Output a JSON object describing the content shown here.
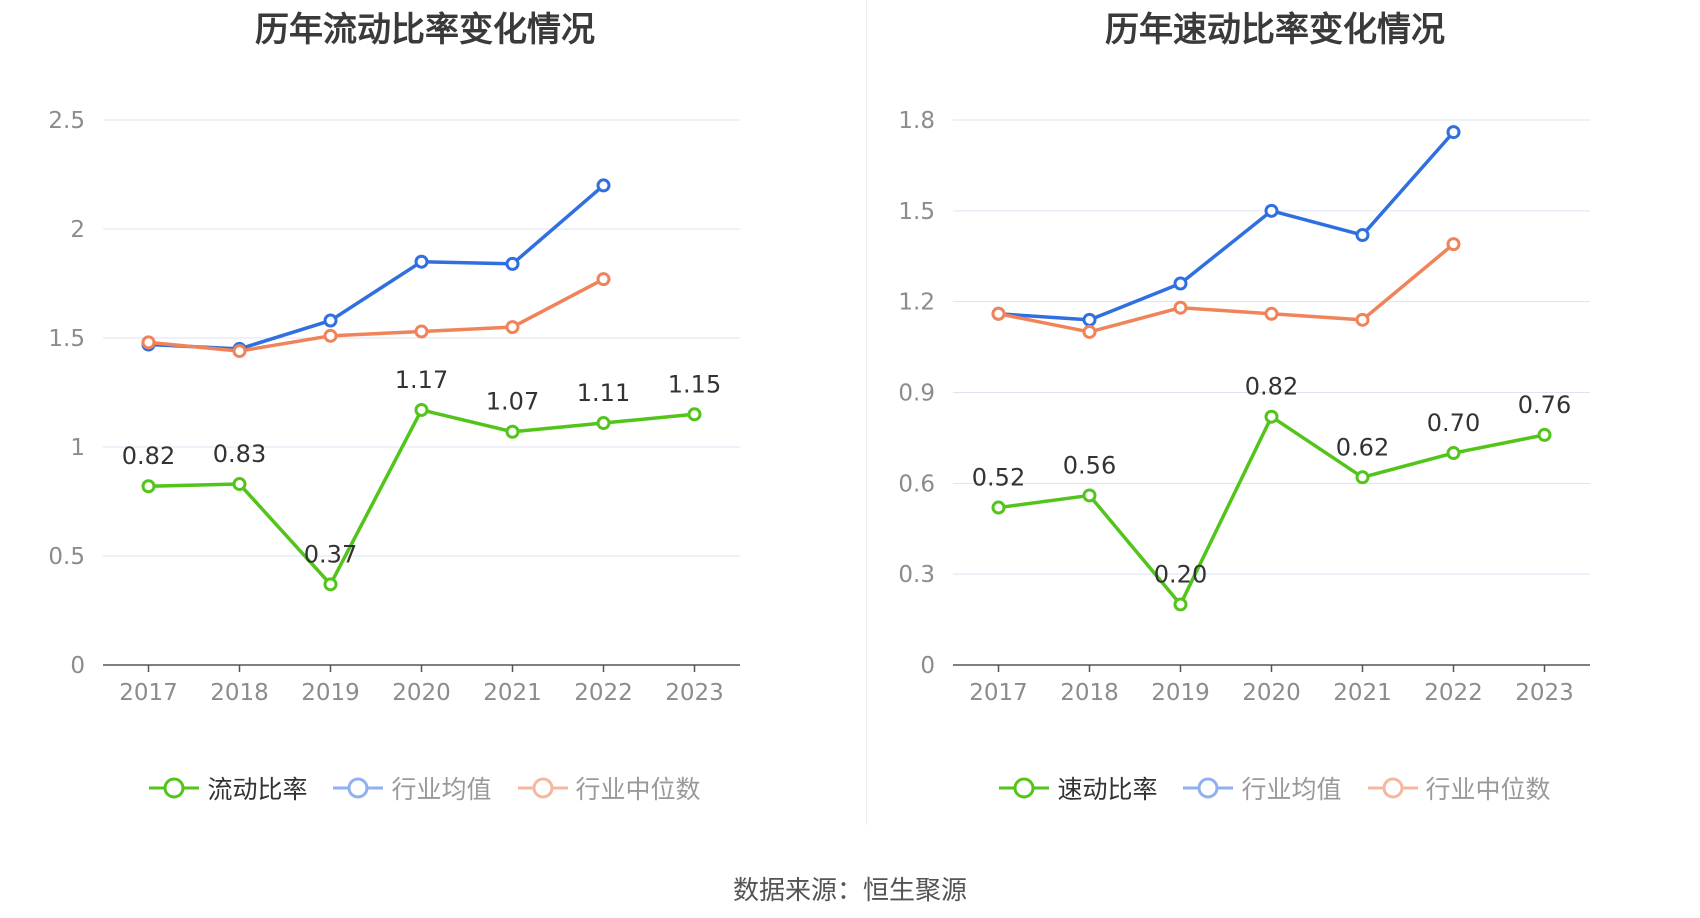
{
  "colors": {
    "primary": "#52c41a",
    "average": "#2f6fdf",
    "median": "#f0835a"
  },
  "source_label": "数据来源：恒生聚源",
  "chart_data": [
    {
      "type": "line",
      "title": "历年流动比率变化情况",
      "categories": [
        "2017",
        "2018",
        "2019",
        "2020",
        "2021",
        "2022",
        "2023"
      ],
      "ylim": [
        0,
        2.5
      ],
      "yticks": [
        "0",
        "0.5",
        "1",
        "1.5",
        "2",
        "2.5"
      ],
      "grid": true,
      "legend_position": "bottom",
      "series": [
        {
          "name": "流动比率",
          "values": [
            0.82,
            0.83,
            0.37,
            1.17,
            1.07,
            1.11,
            1.15
          ],
          "labels": [
            "0.82",
            "0.83",
            "0.37",
            "1.17",
            "1.07",
            "1.11",
            "1.15"
          ]
        },
        {
          "name": "行业均值",
          "values": [
            1.47,
            1.45,
            1.58,
            1.85,
            1.84,
            2.2,
            null
          ]
        },
        {
          "name": "行业中位数",
          "values": [
            1.48,
            1.44,
            1.51,
            1.53,
            1.55,
            1.77,
            null
          ]
        }
      ]
    },
    {
      "type": "line",
      "title": "历年速动比率变化情况",
      "categories": [
        "2017",
        "2018",
        "2019",
        "2020",
        "2021",
        "2022",
        "2023"
      ],
      "ylim": [
        0,
        1.8
      ],
      "yticks": [
        "0",
        "0.3",
        "0.6",
        "0.9",
        "1.2",
        "1.5",
        "1.8"
      ],
      "grid": true,
      "legend_position": "bottom",
      "series": [
        {
          "name": "速动比率",
          "values": [
            0.52,
            0.56,
            0.2,
            0.82,
            0.62,
            0.7,
            0.76
          ],
          "labels": [
            "0.52",
            "0.56",
            "0.20",
            "0.82",
            "0.62",
            "0.70",
            "0.76"
          ]
        },
        {
          "name": "行业均值",
          "values": [
            1.16,
            1.14,
            1.26,
            1.5,
            1.42,
            1.76,
            null
          ]
        },
        {
          "name": "行业中位数",
          "values": [
            1.16,
            1.1,
            1.18,
            1.16,
            1.14,
            1.39,
            null
          ]
        }
      ]
    }
  ]
}
